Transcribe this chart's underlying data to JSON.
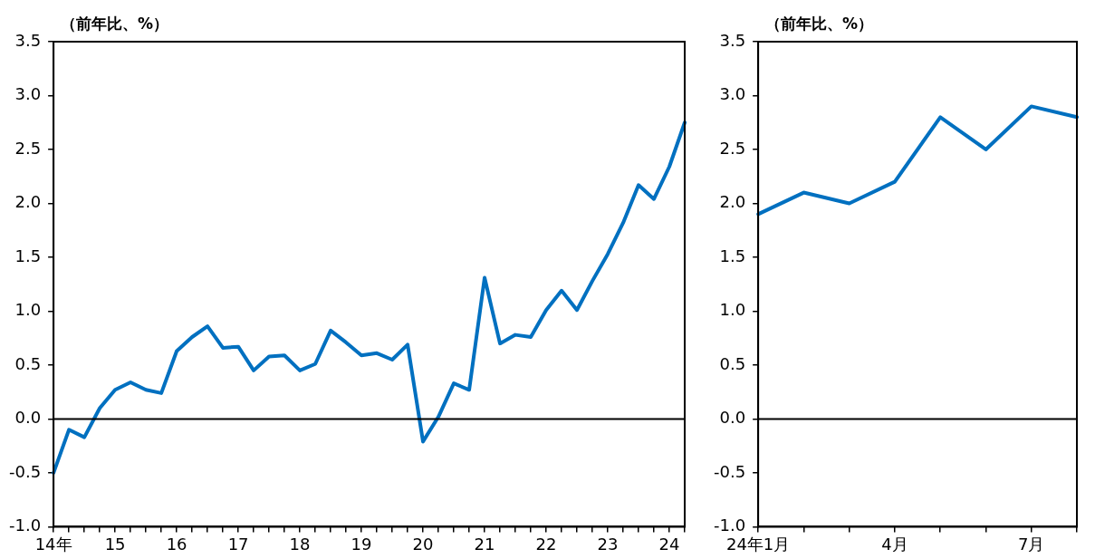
{
  "chart_data": [
    {
      "type": "line",
      "ylabel": "（前年比、%）",
      "categories": [
        "14年",
        null,
        null,
        null,
        "15",
        null,
        null,
        null,
        "16",
        null,
        null,
        null,
        "17",
        null,
        null,
        null,
        "18",
        null,
        null,
        null,
        "19",
        null,
        null,
        null,
        "20",
        null,
        null,
        null,
        "21",
        null,
        null,
        null,
        "22",
        null,
        null,
        null,
        "23",
        null,
        null,
        null,
        "24",
        null
      ],
      "series": [
        {
          "color": "#0070c0",
          "values": [
            -0.5,
            -0.1,
            -0.17,
            0.1,
            0.27,
            0.34,
            0.27,
            0.24,
            0.63,
            0.76,
            0.86,
            0.66,
            0.67,
            0.45,
            0.58,
            0.59,
            0.45,
            0.51,
            0.82,
            0.71,
            0.59,
            0.61,
            0.55,
            0.69,
            -0.21,
            0.02,
            0.33,
            0.27,
            1.31,
            0.7,
            0.78,
            0.76,
            1.01,
            1.19,
            1.01,
            1.28,
            1.53,
            1.82,
            2.17,
            2.04,
            2.34,
            2.75
          ]
        }
      ],
      "ylim": [
        -1,
        3.5
      ],
      "yticks": [
        {
          "value": -1,
          "label": "-1.0"
        },
        {
          "value": -0.5,
          "label": "-0.5"
        },
        {
          "value": 0,
          "label": "0.0"
        },
        {
          "value": 0.5,
          "label": "0.5"
        },
        {
          "value": 1,
          "label": "1.0"
        },
        {
          "value": 1.5,
          "label": "1.5"
        },
        {
          "value": 2,
          "label": "2.0"
        },
        {
          "value": 2.5,
          "label": "2.5"
        },
        {
          "value": 3,
          "label": "3.0"
        },
        {
          "value": 3.5,
          "label": "3.5"
        }
      ],
      "ref_lines": [
        {
          "axis": "y",
          "value": 0,
          "color": "#000000"
        }
      ],
      "grid": false,
      "legend": false,
      "marker": "none",
      "line_style": "solid"
    },
    {
      "type": "line",
      "ylabel": "（前年比、%）",
      "categories": [
        "24年1月",
        null,
        null,
        "4月",
        null,
        null,
        "7月",
        null
      ],
      "series": [
        {
          "color": "#0070c0",
          "values": [
            1.9,
            2.1,
            2.0,
            2.2,
            2.8,
            2.5,
            2.9,
            2.8
          ]
        }
      ],
      "ylim": [
        -1,
        3.5
      ],
      "yticks": [
        {
          "value": -1,
          "label": "-1.0"
        },
        {
          "value": -0.5,
          "label": "-0.5"
        },
        {
          "value": 0,
          "label": "0.0"
        },
        {
          "value": 0.5,
          "label": "0.5"
        },
        {
          "value": 1,
          "label": "1.0"
        },
        {
          "value": 1.5,
          "label": "1.5"
        },
        {
          "value": 2,
          "label": "2.0"
        },
        {
          "value": 2.5,
          "label": "2.5"
        },
        {
          "value": 3,
          "label": "3.0"
        },
        {
          "value": 3.5,
          "label": "3.5"
        }
      ],
      "ref_lines": [
        {
          "axis": "y",
          "value": 0,
          "color": "#000000"
        }
      ],
      "grid": false,
      "legend": false,
      "marker": "none",
      "line_style": "solid"
    }
  ]
}
